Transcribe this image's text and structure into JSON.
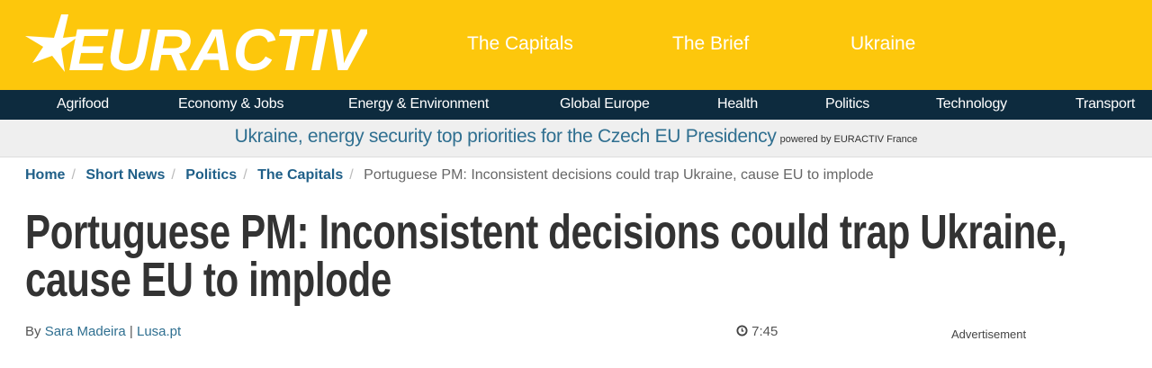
{
  "colors": {
    "brand_yellow": "#fdc70c",
    "nav_navy": "#0d2b3e",
    "link_blue": "#2f6f90"
  },
  "logo": {
    "text": "EURACTIV"
  },
  "top_nav": [
    "The Capitals",
    "The Brief",
    "Ukraine"
  ],
  "category_nav": [
    "Agrifood",
    "Economy & Jobs",
    "Energy & Environment",
    "Global Europe",
    "Health",
    "Politics",
    "Technology",
    "Transport"
  ],
  "banner": {
    "headline": "Ukraine, energy security top priorities for the Czech EU Presidency",
    "powered_by": "powered by EURACTIV France"
  },
  "breadcrumb": [
    "Home",
    "Short News",
    "Politics",
    "The Capitals"
  ],
  "breadcrumb_current": "Portuguese PM: Inconsistent decisions could trap Ukraine, cause EU to implode",
  "article": {
    "title": "Portuguese PM: Inconsistent decisions could trap Ukraine, cause EU to implode",
    "by": "By",
    "author": "Sara Madeira",
    "separator": "|",
    "source": "Lusa.pt",
    "time": "7:45",
    "clock_icon": "clock-icon"
  },
  "advertisement": "Advertisement"
}
